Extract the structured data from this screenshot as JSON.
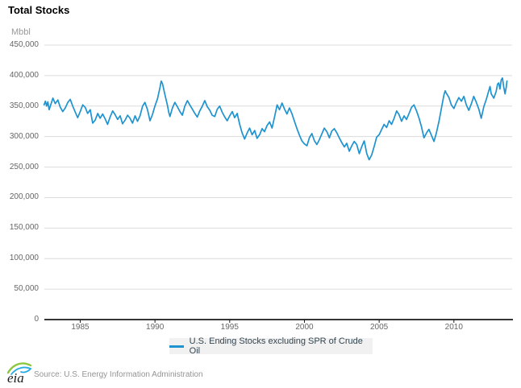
{
  "header": {
    "title": "Total Stocks"
  },
  "footer": {
    "logo_text": "eia",
    "source": "Source: U.S. Energy Information Administration"
  },
  "chart_data": {
    "type": "line",
    "title": "Total Stocks",
    "unit": "Mbbl",
    "grid": true,
    "legend_position": "bottom-center",
    "x_axis": {
      "range": [
        1982.6,
        2013.95
      ],
      "ticks": [
        1985,
        1990,
        1995,
        2000,
        2005,
        2010
      ],
      "tick_labels": [
        "1985",
        "1990",
        "1995",
        "2000",
        "2005",
        "2010"
      ]
    },
    "y_axis": {
      "range": [
        0,
        450000
      ],
      "ticks": [
        450000,
        400000,
        350000,
        300000,
        250000,
        200000,
        150000,
        100000,
        50000,
        0
      ],
      "tick_labels": [
        "450,000",
        "400,000",
        "350,000",
        "300,000",
        "250,000",
        "200,000",
        "150,000",
        "100,000",
        "50,000",
        "0"
      ]
    },
    "series": [
      {
        "name": "U.S. Ending Stocks excluding SPR of Crude Oil",
        "color": "#1e93cf",
        "points": [
          [
            1982.58,
            352000
          ],
          [
            1982.67,
            358000
          ],
          [
            1982.75,
            350000
          ],
          [
            1982.83,
            357000
          ],
          [
            1982.92,
            344000
          ],
          [
            1983.0,
            350000
          ],
          [
            1983.17,
            363000
          ],
          [
            1983.33,
            354000
          ],
          [
            1983.5,
            360000
          ],
          [
            1983.67,
            348000
          ],
          [
            1983.83,
            341000
          ],
          [
            1984.0,
            347000
          ],
          [
            1984.17,
            356000
          ],
          [
            1984.33,
            361000
          ],
          [
            1984.5,
            350000
          ],
          [
            1984.67,
            340000
          ],
          [
            1984.83,
            331000
          ],
          [
            1985.0,
            341000
          ],
          [
            1985.17,
            352000
          ],
          [
            1985.33,
            348000
          ],
          [
            1985.5,
            338000
          ],
          [
            1985.67,
            344000
          ],
          [
            1985.83,
            322000
          ],
          [
            1986.0,
            327000
          ],
          [
            1986.17,
            338000
          ],
          [
            1986.33,
            330000
          ],
          [
            1986.5,
            337000
          ],
          [
            1986.67,
            329000
          ],
          [
            1986.83,
            320000
          ],
          [
            1987.0,
            332000
          ],
          [
            1987.17,
            342000
          ],
          [
            1987.33,
            336000
          ],
          [
            1987.5,
            328000
          ],
          [
            1987.67,
            334000
          ],
          [
            1987.83,
            321000
          ],
          [
            1988.0,
            327000
          ],
          [
            1988.17,
            335000
          ],
          [
            1988.33,
            330000
          ],
          [
            1988.5,
            322000
          ],
          [
            1988.67,
            334000
          ],
          [
            1988.83,
            325000
          ],
          [
            1989.0,
            334000
          ],
          [
            1989.17,
            350000
          ],
          [
            1989.33,
            356000
          ],
          [
            1989.5,
            344000
          ],
          [
            1989.67,
            326000
          ],
          [
            1989.83,
            336000
          ],
          [
            1990.0,
            350000
          ],
          [
            1990.17,
            362000
          ],
          [
            1990.33,
            380000
          ],
          [
            1990.42,
            391000
          ],
          [
            1990.5,
            387000
          ],
          [
            1990.67,
            368000
          ],
          [
            1990.83,
            352000
          ],
          [
            1990.92,
            340000
          ],
          [
            1991.0,
            333000
          ],
          [
            1991.17,
            347000
          ],
          [
            1991.33,
            356000
          ],
          [
            1991.5,
            349000
          ],
          [
            1991.67,
            341000
          ],
          [
            1991.83,
            335000
          ],
          [
            1992.0,
            350000
          ],
          [
            1992.17,
            359000
          ],
          [
            1992.33,
            352000
          ],
          [
            1992.5,
            345000
          ],
          [
            1992.67,
            338000
          ],
          [
            1992.83,
            332000
          ],
          [
            1993.0,
            342000
          ],
          [
            1993.17,
            350000
          ],
          [
            1993.33,
            359000
          ],
          [
            1993.5,
            349000
          ],
          [
            1993.67,
            343000
          ],
          [
            1993.83,
            335000
          ],
          [
            1994.0,
            333000
          ],
          [
            1994.17,
            345000
          ],
          [
            1994.33,
            350000
          ],
          [
            1994.5,
            340000
          ],
          [
            1994.67,
            332000
          ],
          [
            1994.83,
            326000
          ],
          [
            1995.0,
            334000
          ],
          [
            1995.17,
            341000
          ],
          [
            1995.33,
            331000
          ],
          [
            1995.5,
            338000
          ],
          [
            1995.67,
            320000
          ],
          [
            1995.83,
            306000
          ],
          [
            1996.0,
            296000
          ],
          [
            1996.17,
            306000
          ],
          [
            1996.33,
            314000
          ],
          [
            1996.5,
            303000
          ],
          [
            1996.67,
            310000
          ],
          [
            1996.83,
            297000
          ],
          [
            1997.0,
            303000
          ],
          [
            1997.17,
            313000
          ],
          [
            1997.33,
            308000
          ],
          [
            1997.5,
            318000
          ],
          [
            1997.67,
            324000
          ],
          [
            1997.83,
            314000
          ],
          [
            1998.0,
            332000
          ],
          [
            1998.17,
            352000
          ],
          [
            1998.33,
            344000
          ],
          [
            1998.5,
            355000
          ],
          [
            1998.67,
            345000
          ],
          [
            1998.83,
            337000
          ],
          [
            1999.0,
            347000
          ],
          [
            1999.17,
            337000
          ],
          [
            1999.33,
            325000
          ],
          [
            1999.5,
            313000
          ],
          [
            1999.67,
            302000
          ],
          [
            1999.83,
            293000
          ],
          [
            2000.0,
            288000
          ],
          [
            2000.17,
            285000
          ],
          [
            2000.33,
            298000
          ],
          [
            2000.5,
            305000
          ],
          [
            2000.67,
            293000
          ],
          [
            2000.83,
            287000
          ],
          [
            2001.0,
            295000
          ],
          [
            2001.17,
            305000
          ],
          [
            2001.33,
            314000
          ],
          [
            2001.5,
            308000
          ],
          [
            2001.67,
            298000
          ],
          [
            2001.83,
            309000
          ],
          [
            2002.0,
            313000
          ],
          [
            2002.17,
            306000
          ],
          [
            2002.33,
            298000
          ],
          [
            2002.5,
            290000
          ],
          [
            2002.67,
            283000
          ],
          [
            2002.83,
            289000
          ],
          [
            2003.0,
            276000
          ],
          [
            2003.17,
            285000
          ],
          [
            2003.33,
            292000
          ],
          [
            2003.5,
            287000
          ],
          [
            2003.67,
            272000
          ],
          [
            2003.83,
            283000
          ],
          [
            2004.0,
            293000
          ],
          [
            2004.17,
            272000
          ],
          [
            2004.33,
            262000
          ],
          [
            2004.5,
            270000
          ],
          [
            2004.67,
            284000
          ],
          [
            2004.83,
            299000
          ],
          [
            2005.0,
            303000
          ],
          [
            2005.17,
            312000
          ],
          [
            2005.33,
            320000
          ],
          [
            2005.5,
            315000
          ],
          [
            2005.67,
            326000
          ],
          [
            2005.83,
            320000
          ],
          [
            2006.0,
            330000
          ],
          [
            2006.17,
            342000
          ],
          [
            2006.33,
            336000
          ],
          [
            2006.5,
            325000
          ],
          [
            2006.67,
            334000
          ],
          [
            2006.83,
            328000
          ],
          [
            2007.0,
            338000
          ],
          [
            2007.17,
            348000
          ],
          [
            2007.33,
            352000
          ],
          [
            2007.5,
            342000
          ],
          [
            2007.67,
            330000
          ],
          [
            2007.83,
            316000
          ],
          [
            2008.0,
            298000
          ],
          [
            2008.17,
            306000
          ],
          [
            2008.33,
            312000
          ],
          [
            2008.5,
            302000
          ],
          [
            2008.67,
            292000
          ],
          [
            2008.83,
            306000
          ],
          [
            2009.0,
            325000
          ],
          [
            2009.17,
            347000
          ],
          [
            2009.33,
            368000
          ],
          [
            2009.42,
            375000
          ],
          [
            2009.5,
            371000
          ],
          [
            2009.67,
            364000
          ],
          [
            2009.83,
            352000
          ],
          [
            2010.0,
            346000
          ],
          [
            2010.17,
            356000
          ],
          [
            2010.33,
            364000
          ],
          [
            2010.5,
            358000
          ],
          [
            2010.67,
            366000
          ],
          [
            2010.83,
            352000
          ],
          [
            2011.0,
            343000
          ],
          [
            2011.17,
            354000
          ],
          [
            2011.33,
            366000
          ],
          [
            2011.5,
            356000
          ],
          [
            2011.67,
            345000
          ],
          [
            2011.83,
            330000
          ],
          [
            2012.0,
            349000
          ],
          [
            2012.17,
            361000
          ],
          [
            2012.33,
            375000
          ],
          [
            2012.42,
            382000
          ],
          [
            2012.5,
            370000
          ],
          [
            2012.67,
            363000
          ],
          [
            2012.83,
            374000
          ],
          [
            2012.92,
            386000
          ],
          [
            2013.0,
            388000
          ],
          [
            2013.08,
            378000
          ],
          [
            2013.17,
            393000
          ],
          [
            2013.25,
            396000
          ],
          [
            2013.33,
            382000
          ],
          [
            2013.42,
            370000
          ],
          [
            2013.5,
            381000
          ],
          [
            2013.55,
            391000
          ]
        ]
      }
    ]
  }
}
